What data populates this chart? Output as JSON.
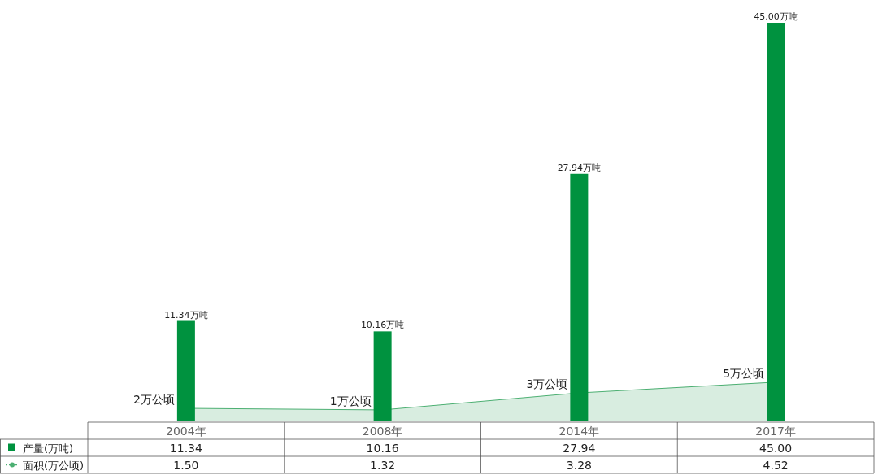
{
  "chart_data": {
    "type": "bar",
    "categories": [
      "2004年",
      "2008年",
      "2014年",
      "2017年"
    ],
    "series": [
      {
        "name": "产量(万吨)",
        "color": "#00923f",
        "values": [
          11.34,
          10.16,
          27.94,
          45.0
        ],
        "value_labels": [
          "11.34",
          "10.16",
          "27.94",
          "45.00"
        ]
      },
      {
        "name": "面积(万公顷)",
        "type": "area",
        "axis": "y2",
        "color": "#4caf72",
        "values": [
          1.5,
          1.32,
          3.28,
          4.52
        ],
        "value_labels": [
          "1.50",
          "1.32",
          "3.28",
          "4.52"
        ]
      }
    ],
    "annotations": [
      {
        "text": "11.34万吨",
        "x": "2004年",
        "y": 11.34
      },
      {
        "text": "10.16万吨",
        "x": "2008年",
        "y": 10.16
      },
      {
        "text": "27.94万吨",
        "x": "2014年",
        "y": 27.94
      },
      {
        "text": "45.00万吨",
        "x": "2017年",
        "y": 45.0
      },
      {
        "text": "2万公顷",
        "x": "2004年",
        "y": 1.5
      },
      {
        "text": "1万公顷",
        "x": "2008年",
        "y": 1.32
      },
      {
        "text": "3万公顷",
        "x": "2014年",
        "y": 3.28
      },
      {
        "text": "5万公顷",
        "x": "2017年",
        "y": 4.52
      }
    ],
    "ylim": [
      0,
      45
    ],
    "y2lim": [
      0,
      46
    ],
    "tick_labels": false,
    "legend": "bottom left"
  }
}
